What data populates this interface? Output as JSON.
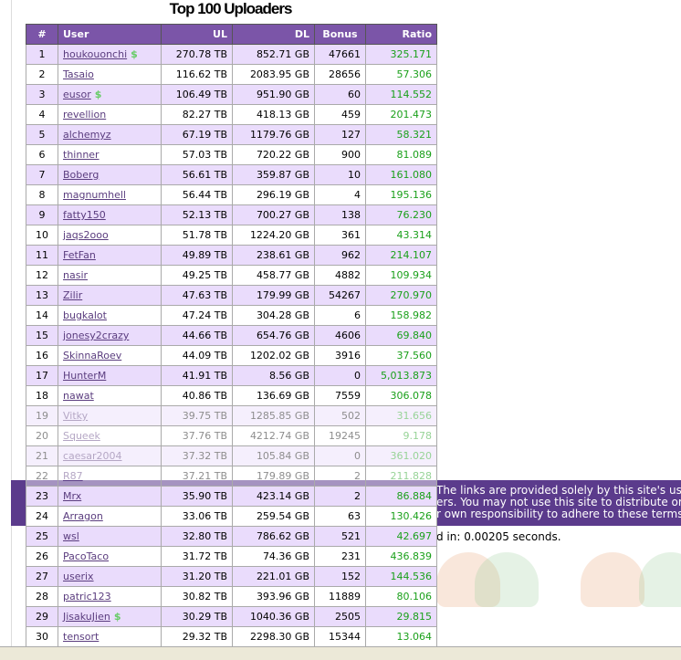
{
  "title": "Top 100 Uploaders",
  "columns": [
    "#",
    "User",
    "UL",
    "DL",
    "Bonus",
    "Ratio"
  ],
  "rows": [
    [
      "1",
      "houkouonchi",
      "270.78 TB",
      "852.71 GB",
      "47661",
      "325.171",
      true
    ],
    [
      "2",
      "Tasaio",
      "116.62 TB",
      "2083.95 GB",
      "28656",
      "57.306",
      false
    ],
    [
      "3",
      "eusor",
      "106.49 TB",
      "951.90 GB",
      "60",
      "114.552",
      true
    ],
    [
      "4",
      "revellion",
      "82.27 TB",
      "418.13 GB",
      "459",
      "201.473",
      false
    ],
    [
      "5",
      "alchemyz",
      "67.19 TB",
      "1179.76 GB",
      "127",
      "58.321",
      false
    ],
    [
      "6",
      "thinner",
      "57.03 TB",
      "720.22 GB",
      "900",
      "81.089",
      false
    ],
    [
      "7",
      "Boberg",
      "56.61 TB",
      "359.87 GB",
      "10",
      "161.080",
      false
    ],
    [
      "8",
      "magnumhell",
      "56.44 TB",
      "296.19 GB",
      "4",
      "195.136",
      false
    ],
    [
      "9",
      "fatty150",
      "52.13 TB",
      "700.27 GB",
      "138",
      "76.230",
      false
    ],
    [
      "10",
      "jaqs2ooo",
      "51.78 TB",
      "1224.20 GB",
      "361",
      "43.314",
      false
    ],
    [
      "11",
      "FetFan",
      "49.89 TB",
      "238.61 GB",
      "962",
      "214.107",
      false
    ],
    [
      "12",
      "nasir",
      "49.25 TB",
      "458.77 GB",
      "4882",
      "109.934",
      false
    ],
    [
      "13",
      "Zilir",
      "47.63 TB",
      "179.99 GB",
      "54267",
      "270.970",
      false
    ],
    [
      "14",
      "bugkalot",
      "47.24 TB",
      "304.28 GB",
      "6",
      "158.982",
      false
    ],
    [
      "15",
      "jonesy2crazy",
      "44.66 TB",
      "654.76 GB",
      "4606",
      "69.840",
      false
    ],
    [
      "16",
      "SkinnaRoev",
      "44.09 TB",
      "1202.02 GB",
      "3916",
      "37.560",
      false
    ],
    [
      "17",
      "HunterM",
      "41.91 TB",
      "8.56 GB",
      "0",
      "5,013.873",
      false
    ],
    [
      "18",
      "nawat",
      "40.86 TB",
      "136.69 GB",
      "7559",
      "306.078",
      false
    ],
    [
      "19",
      "Vitky",
      "39.75 TB",
      "1285.85 GB",
      "502",
      "31.656",
      false
    ],
    [
      "20",
      "Squeek",
      "37.76 TB",
      "4212.74 GB",
      "19245",
      "9.178",
      false
    ],
    [
      "21",
      "caesar2004",
      "37.32 TB",
      "105.84 GB",
      "0",
      "361.020",
      false
    ],
    [
      "22",
      "R87",
      "37.21 TB",
      "179.89 GB",
      "2",
      "211.828",
      false
    ],
    [
      "23",
      "Mrx",
      "35.90 TB",
      "423.14 GB",
      "2",
      "86.884",
      false
    ],
    [
      "24",
      "Arragon",
      "33.06 TB",
      "259.54 GB",
      "63",
      "130.426",
      false
    ],
    [
      "25",
      "wsl",
      "32.80 TB",
      "786.62 GB",
      "521",
      "42.697",
      false
    ],
    [
      "26",
      "PacoTaco",
      "31.72 TB",
      "74.36 GB",
      "231",
      "436.839",
      false
    ],
    [
      "27",
      "userix",
      "31.20 TB",
      "221.01 GB",
      "152",
      "144.536",
      false
    ],
    [
      "28",
      "patric123",
      "30.82 TB",
      "393.96 GB",
      "11889",
      "80.106",
      false
    ],
    [
      "29",
      "JisakuJien",
      "30.29 TB",
      "1040.36 GB",
      "2505",
      "29.815",
      true
    ],
    [
      "30",
      "tensort",
      "29.32 TB",
      "2298.30 GB",
      "15344",
      "13.064",
      false
    ]
  ],
  "donor_icon": "dollar-icon",
  "disclaimer": [
    "The links are provided solely by this site's user",
    "ers. You may not use this site to distribute or d",
    "r own responsibility to adhere to these terms."
  ],
  "timing": "d in: 0.00205 seconds.",
  "colors": {
    "header": "#7b55a8",
    "row_alt": "#eadcfc",
    "ratio": "#1aa01a",
    "band": "#5b3b8c"
  }
}
